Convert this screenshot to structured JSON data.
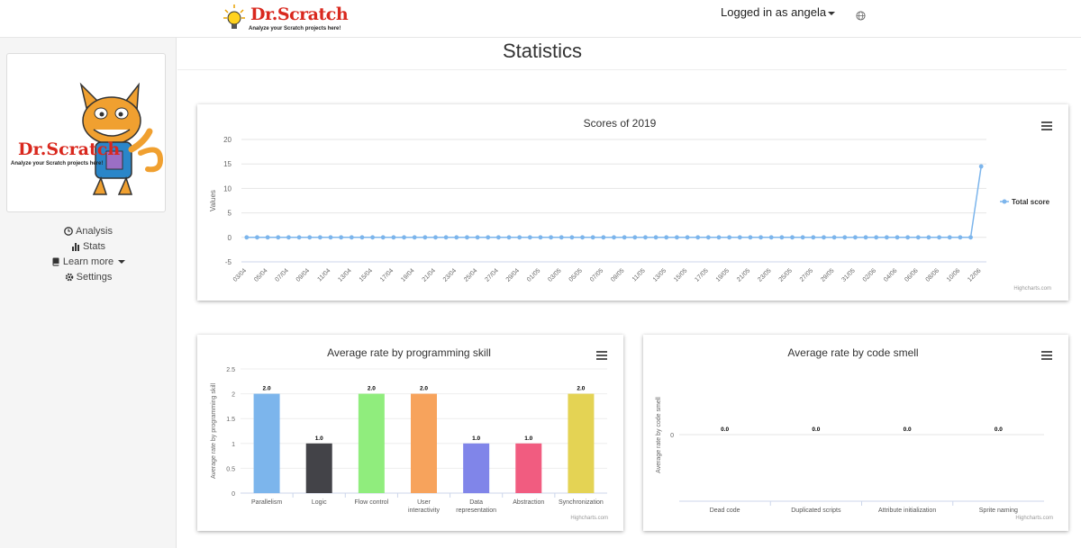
{
  "header": {
    "logo_text": "Dr.Scratch",
    "logo_tagline": "Analyze your Scratch projects here!",
    "logged_in_label": "Logged in as angela"
  },
  "sidebar": {
    "logo_text": "Dr.Scratch",
    "logo_tagline": "Analyze your Scratch projects here!",
    "items": [
      {
        "label": "Analysis",
        "icon": "clock-icon"
      },
      {
        "label": "Stats",
        "icon": "bar-chart-icon"
      },
      {
        "label": "Learn more",
        "icon": "book-icon"
      },
      {
        "label": "Settings",
        "icon": "gear-icon"
      }
    ]
  },
  "page": {
    "title": "Statistics"
  },
  "colors": {
    "line": "#7cb5ec",
    "bars": [
      "#7cb5ec",
      "#434348",
      "#90ed7d",
      "#f7a35c",
      "#8085e9",
      "#f15c80",
      "#e4d354"
    ]
  },
  "credits": "Highcharts.com",
  "chart_data": [
    {
      "type": "line",
      "title": "Scores of 2019",
      "ylabel": "Values",
      "xlabel": "",
      "ylim": [
        -5,
        20
      ],
      "yticks": [
        -5,
        0,
        5,
        10,
        15,
        20
      ],
      "legend": "right",
      "x_tick_labels": [
        "03/04",
        "05/04",
        "07/04",
        "09/04",
        "11/04",
        "13/04",
        "15/04",
        "17/04",
        "19/04",
        "21/04",
        "23/04",
        "25/04",
        "27/04",
        "29/04",
        "01/05",
        "03/05",
        "05/05",
        "07/05",
        "09/05",
        "11/05",
        "13/05",
        "15/05",
        "17/05",
        "19/05",
        "21/05",
        "23/05",
        "25/05",
        "27/05",
        "29/05",
        "31/05",
        "02/06",
        "04/06",
        "06/06",
        "08/06",
        "10/06",
        "12/06"
      ],
      "series": [
        {
          "name": "Total score",
          "values": [
            0,
            0,
            0,
            0,
            0,
            0,
            0,
            0,
            0,
            0,
            0,
            0,
            0,
            0,
            0,
            0,
            0,
            0,
            0,
            0,
            0,
            0,
            0,
            0,
            0,
            0,
            0,
            0,
            0,
            0,
            0,
            0,
            0,
            0,
            0,
            0,
            0,
            0,
            0,
            0,
            0,
            0,
            0,
            0,
            0,
            0,
            0,
            0,
            0,
            0,
            0,
            0,
            0,
            0,
            0,
            0,
            0,
            0,
            0,
            0,
            0,
            0,
            0,
            0,
            0,
            0,
            0,
            0,
            0,
            0,
            14.5
          ]
        }
      ]
    },
    {
      "type": "bar",
      "title": "Average rate by programming skill",
      "ylabel": "Average rate by programming skill",
      "xlabel": "",
      "ylim": [
        0,
        2.5
      ],
      "yticks": [
        0,
        0.5,
        1,
        1.5,
        2,
        2.5
      ],
      "ytick_labels": [
        "0",
        "0.5",
        "1",
        "1.5",
        "2",
        "2.5"
      ],
      "categories": [
        "Parallelism",
        "Logic",
        "Flow control",
        "User interactivity",
        "Data representation",
        "Abstraction",
        "Synchronization"
      ],
      "category_lines": [
        [
          "Parallelism"
        ],
        [
          "Logic"
        ],
        [
          "Flow control"
        ],
        [
          "User",
          "interactivity"
        ],
        [
          "Data",
          "representation"
        ],
        [
          "Abstraction"
        ],
        [
          "Synchronization"
        ]
      ],
      "values": [
        2.0,
        1.0,
        2.0,
        2.0,
        1.0,
        1.0,
        2.0
      ],
      "value_labels": [
        "2.0",
        "1.0",
        "2.0",
        "2.0",
        "1.0",
        "1.0",
        "2.0"
      ]
    },
    {
      "type": "bar",
      "title": "Average rate by code smell",
      "ylabel": "Average rate by code smell",
      "xlabel": "",
      "yticks": [
        0
      ],
      "ytick_labels": [
        "0"
      ],
      "categories": [
        "Dead code",
        "Duplicated scripts",
        "Attribute initialization",
        "Sprite naming"
      ],
      "values": [
        0.0,
        0.0,
        0.0,
        0.0
      ],
      "value_labels": [
        "0.0",
        "0.0",
        "0.0",
        "0.0"
      ]
    }
  ]
}
